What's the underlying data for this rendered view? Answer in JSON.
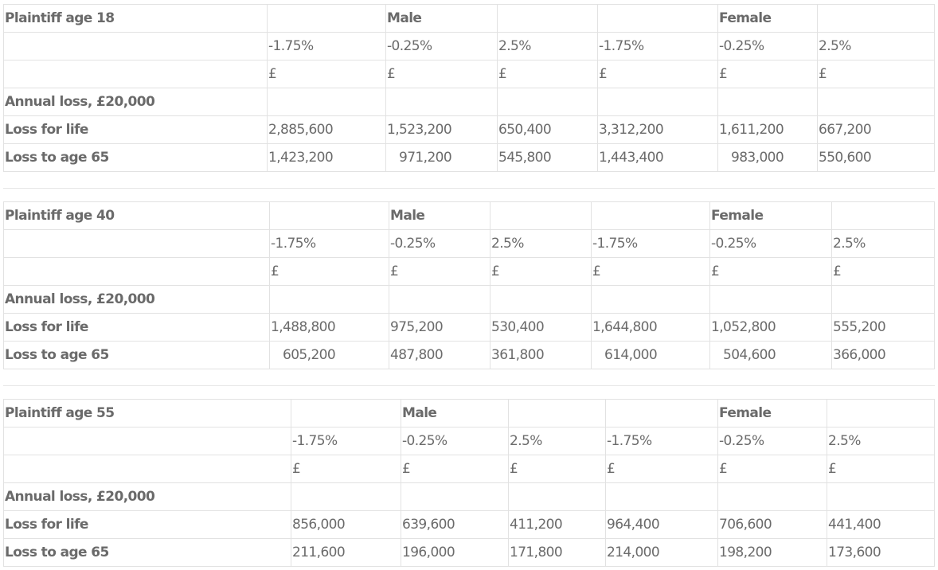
{
  "tables": [
    {
      "title": "Plaintiff age 18",
      "male": "Male",
      "female": "Female",
      "rates": [
        "-1.75%",
        "-0.25%",
        "2.5%",
        "-1.75%",
        "-0.25%",
        "2.5%"
      ],
      "currency": [
        "£",
        "£",
        "£",
        "£",
        "£",
        "£"
      ],
      "rows": [
        {
          "label": "Annual loss, £20,000",
          "values": [
            "",
            "",
            "",
            "",
            "",
            ""
          ]
        },
        {
          "label": "Loss for life",
          "values": [
            "2,885,600",
            "1,523,200",
            "650,400",
            "3,312,200",
            "1,611,200",
            "667,200"
          ]
        },
        {
          "label": "Loss to age 65",
          "values": [
            "1,423,200",
            "971,200",
            "545,800",
            "1,443,400",
            "983,000",
            "550,600"
          ]
        }
      ]
    },
    {
      "title": "Plaintiff age 40",
      "male": "Male",
      "female": "Female",
      "rates": [
        "-1.75%",
        "-0.25%",
        "2.5%",
        "-1.75%",
        "-0.25%",
        "2.5%"
      ],
      "currency": [
        "£",
        "£",
        "£",
        "£",
        "£",
        "£"
      ],
      "rows": [
        {
          "label": "Annual loss, £20,000",
          "values": [
            "",
            "",
            "",
            "",
            "",
            ""
          ]
        },
        {
          "label": "Loss for life",
          "values": [
            "1,488,800",
            "975,200",
            "530,400",
            "1,644,800",
            "1,052,800",
            "555,200"
          ]
        },
        {
          "label": "Loss to age 65",
          "values": [
            "605,200",
            "487,800",
            "361,800",
            "614,000",
            "504,600",
            "366,000"
          ]
        }
      ]
    },
    {
      "title": "Plaintiff age 55",
      "male": "Male",
      "female": "Female",
      "rates": [
        "-1.75%",
        "-0.25%",
        "2.5%",
        "-1.75%",
        "-0.25%",
        "2.5%"
      ],
      "currency": [
        "£",
        "£",
        "£",
        "£",
        "£",
        "£"
      ],
      "rows": [
        {
          "label": "Annual loss, £20,000",
          "values": [
            "",
            "",
            "",
            "",
            "",
            ""
          ]
        },
        {
          "label": "Loss for life",
          "values": [
            "856,000",
            "639,600",
            "411,200",
            "964,400",
            "706,600",
            "441,400"
          ]
        },
        {
          "label": "Loss to age 65",
          "values": [
            "211,600",
            "196,000",
            "171,800",
            "214,000",
            "198,200",
            "173,600"
          ]
        }
      ]
    }
  ]
}
